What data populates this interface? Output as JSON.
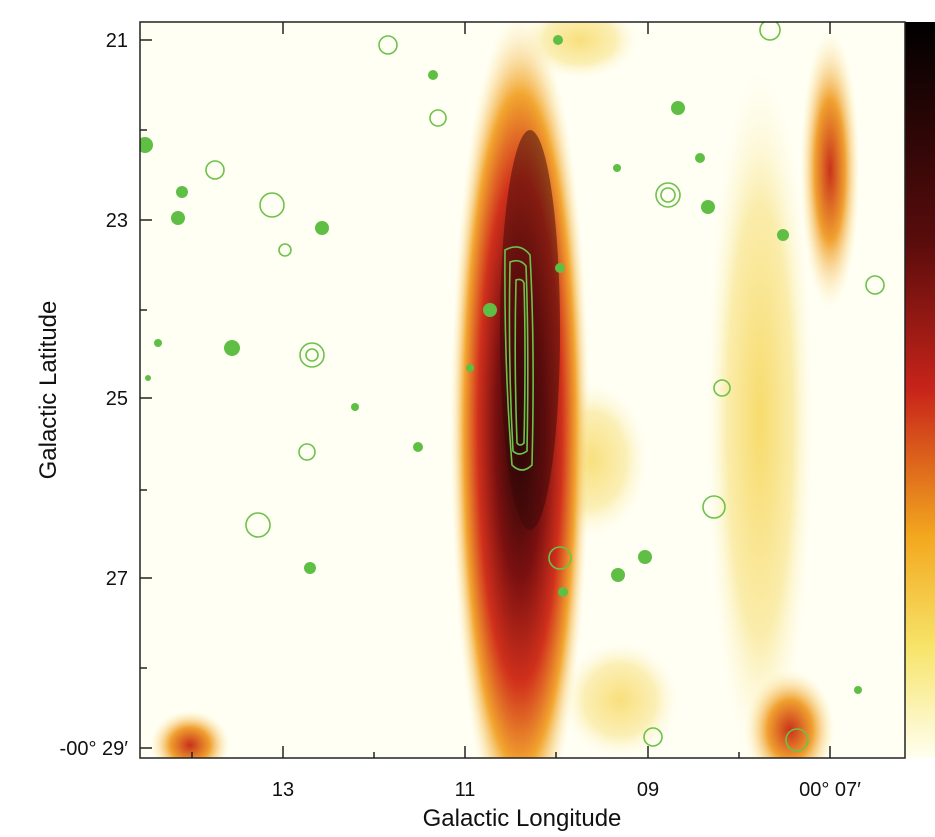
{
  "figure": {
    "x_axis": {
      "label": "Galactic Longitude",
      "ticks": [
        "13",
        "11",
        "09",
        "00° 07′"
      ]
    },
    "y_axis": {
      "label": "Galactic Latitude",
      "ticks": [
        "21",
        "23",
        "25",
        "27",
        "-00° 29′"
      ]
    }
  }
}
